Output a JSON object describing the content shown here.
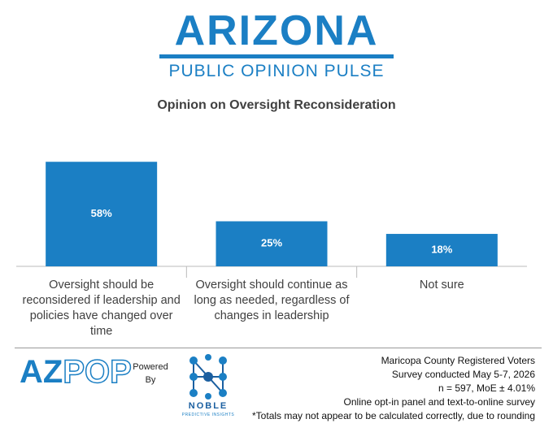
{
  "header": {
    "title": "ARIZONA",
    "subtitle": "PUBLIC OPINION PULSE"
  },
  "chart_data": {
    "type": "bar",
    "title": "Opinion on Oversight Reconsideration",
    "categories": [
      "Oversight should be reconsidered if leadership and policies have changed over time",
      "Oversight should continue as long as needed, regardless of changes in leadership",
      "Not sure"
    ],
    "values": [
      58,
      25,
      18
    ],
    "value_labels": [
      "58%",
      "25%",
      "18%"
    ],
    "color": "#1b7fc4"
  },
  "footer": {
    "logo_az": "AZ",
    "logo_pop": "POP",
    "powered_by": "Powered By",
    "partner": "NOBLE",
    "partner_tagline": "PREDICTIVE INSIGHTS",
    "notes": [
      "Maricopa County Registered Voters",
      "Survey conducted May 5-7, 2026",
      "n = 597, MoE ± 4.01%",
      "Online opt-in panel and text-to-online survey",
      "*Totals may not appear to be calculated correctly, due to rounding"
    ]
  }
}
